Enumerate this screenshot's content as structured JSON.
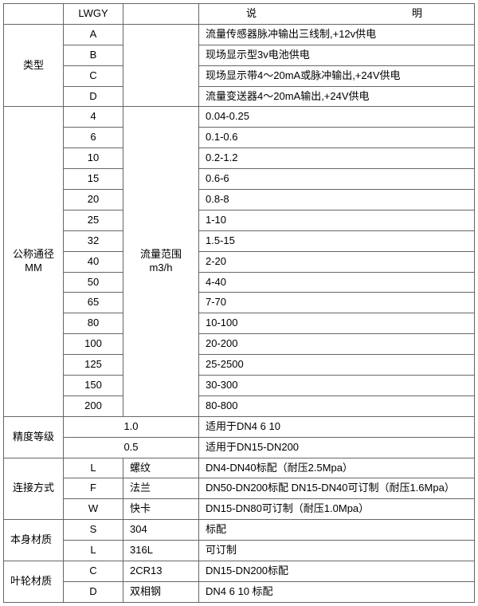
{
  "header": {
    "lwgy": "LWGY",
    "desc_title": "说　　　明"
  },
  "type_section": {
    "label": "类型",
    "rows": [
      {
        "code": "A",
        "desc": "流量传感器脉冲输出三线制,+12v供电"
      },
      {
        "code": "B",
        "desc": "现场显示型3v电池供电"
      },
      {
        "code": "C",
        "desc": "现场显示带4～20mA或脉冲输出,+24V供电"
      },
      {
        "code": "D",
        "desc": "流量变送器4～20mA输出,+24V供电"
      }
    ]
  },
  "dn_section": {
    "label_line1": "公称通径",
    "label_line2": "MM",
    "range_label_line1": "流量范围",
    "range_label_line2": "m3/h",
    "rows": [
      {
        "dn": "4",
        "range": "0.04-0.25"
      },
      {
        "dn": "6",
        "range": "0.1-0.6"
      },
      {
        "dn": "10",
        "range": "0.2-1.2"
      },
      {
        "dn": "15",
        "range": "0.6-6"
      },
      {
        "dn": "20",
        "range": "0.8-8"
      },
      {
        "dn": "25",
        "range": "1-10"
      },
      {
        "dn": "32",
        "range": "1.5-15"
      },
      {
        "dn": "40",
        "range": "2-20"
      },
      {
        "dn": "50",
        "range": "4-40"
      },
      {
        "dn": "65",
        "range": "7-70"
      },
      {
        "dn": "80",
        "range": "10-100"
      },
      {
        "dn": "100",
        "range": "20-200"
      },
      {
        "dn": "125",
        "range": "25-2500"
      },
      {
        "dn": "150",
        "range": "30-300"
      },
      {
        "dn": "200",
        "range": "80-800"
      }
    ]
  },
  "accuracy_section": {
    "label": "精度等级",
    "rows": [
      {
        "val": "1.0",
        "desc": "适用于DN4 6 10"
      },
      {
        "val": "0.5",
        "desc": "适用于DN15-DN200"
      }
    ]
  },
  "connection_section": {
    "label": "连接方式",
    "rows": [
      {
        "code": "L",
        "type": "螺纹",
        "desc": "DN4-DN40标配（耐压2.5Mpa）"
      },
      {
        "code": "F",
        "type": "法兰",
        "desc": "DN50-DN200标配 DN15-DN40可订制（耐压1.6Mpa）"
      },
      {
        "code": "W",
        "type": "快卡",
        "desc": "DN15-DN80可订制（耐压1.0Mpa）"
      }
    ]
  },
  "body_material_section": {
    "label": "本身材质",
    "rows": [
      {
        "code": "S",
        "type": "304",
        "desc": "标配"
      },
      {
        "code": "L",
        "type": "316L",
        "desc": "可订制"
      }
    ]
  },
  "impeller_material_section": {
    "label": "叶轮材质",
    "rows": [
      {
        "code": "C",
        "type": "2CR13",
        "desc": "DN15-DN200标配"
      },
      {
        "code": "D",
        "type": "双相钢",
        "desc": "DN4 6 10 标配"
      }
    ]
  },
  "styling": {
    "border_color": "#666666",
    "background_color": "#ffffff",
    "text_color": "#000000",
    "font_size": 13
  }
}
